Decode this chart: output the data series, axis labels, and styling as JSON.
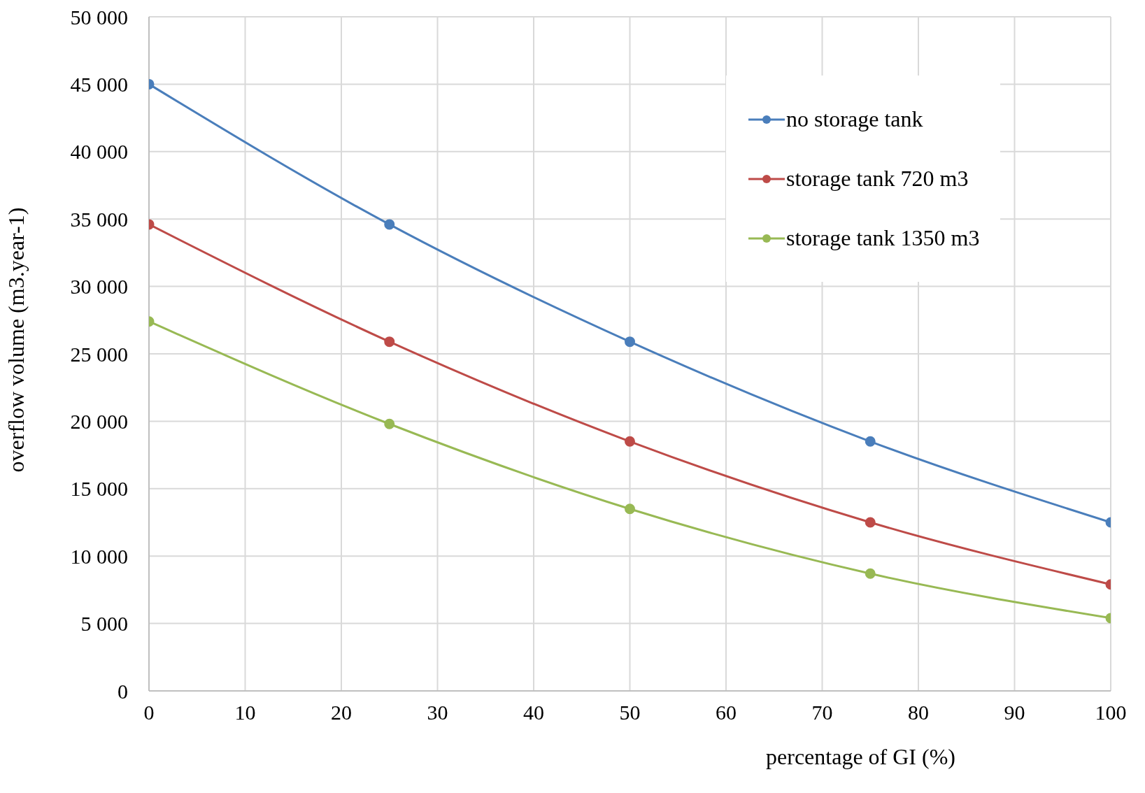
{
  "chart_data": {
    "type": "line",
    "xlabel": "percentage of GI (%)",
    "ylabel": "overflow volume (m3.year-1)",
    "x": [
      0,
      25,
      50,
      75,
      100
    ],
    "series": [
      {
        "name": "no storage tank",
        "color": "#4a7ebb",
        "values": [
          45000,
          34600,
          25900,
          18500,
          12500
        ]
      },
      {
        "name": "storage tank 720 m3",
        "color": "#be4b48",
        "values": [
          34600,
          25900,
          18500,
          12500,
          7900
        ]
      },
      {
        "name": "storage tank 1350 m3",
        "color": "#98b954",
        "values": [
          27400,
          19800,
          13500,
          8700,
          5400
        ]
      }
    ],
    "xlim": [
      0,
      100
    ],
    "xticks": [
      0,
      10,
      20,
      30,
      40,
      50,
      60,
      70,
      80,
      90,
      100
    ],
    "ylim": [
      0,
      50000
    ],
    "yticks": [
      {
        "value": 0,
        "label": "0"
      },
      {
        "value": 5000,
        "label": "5 000"
      },
      {
        "value": 10000,
        "label": "10 000"
      },
      {
        "value": 15000,
        "label": "15 000"
      },
      {
        "value": 20000,
        "label": "20 000"
      },
      {
        "value": 25000,
        "label": "25 000"
      },
      {
        "value": 30000,
        "label": "30 000"
      },
      {
        "value": 35000,
        "label": "35 000"
      },
      {
        "value": 40000,
        "label": "40 000"
      },
      {
        "value": 45000,
        "label": "45 000"
      },
      {
        "value": 50000,
        "label": "50 000"
      }
    ],
    "grid": true,
    "legend": "top right",
    "marker": "circle",
    "line_style": "solid"
  }
}
